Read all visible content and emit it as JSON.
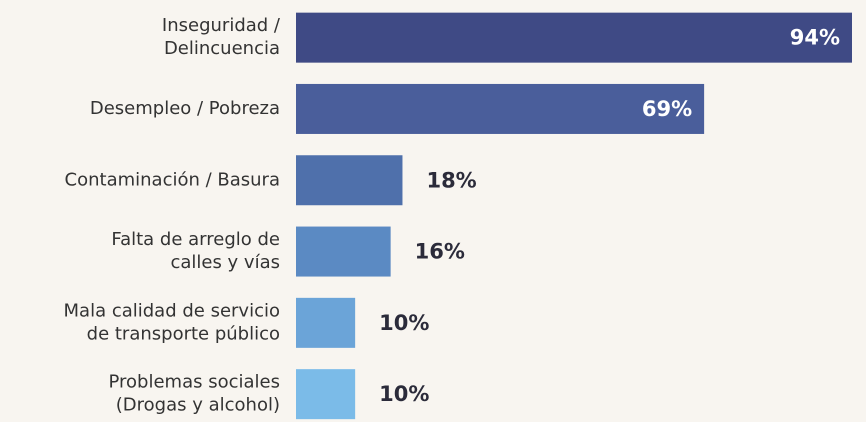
{
  "chart_data": {
    "type": "bar",
    "orientation": "horizontal",
    "categories": [
      "Inseguridad /\nDelincuencia",
      "Desempleo / Pobreza",
      "Contaminación / Basura",
      "Falta de arreglo de\ncalles y vías",
      "Mala calidad de servicio\nde transporte público",
      "Problemas sociales\n(Drogas y alcohol)"
    ],
    "values": [
      94,
      69,
      18,
      16,
      10,
      10
    ],
    "value_labels": [
      "94%",
      "69%",
      "18%",
      "16%",
      "10%",
      "10%"
    ],
    "colors": [
      "#3f4a85",
      "#4a5e9b",
      "#4f70ab",
      "#5b8ac3",
      "#6ba4d8",
      "#7bbbe8"
    ],
    "xlim": [
      0,
      94
    ]
  }
}
